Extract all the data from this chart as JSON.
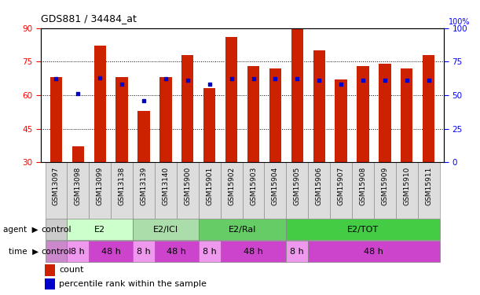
{
  "title": "GDS881 / 34484_at",
  "samples": [
    "GSM13097",
    "GSM13098",
    "GSM13099",
    "GSM13138",
    "GSM13139",
    "GSM13140",
    "GSM15900",
    "GSM15901",
    "GSM15902",
    "GSM15903",
    "GSM15904",
    "GSM15905",
    "GSM15906",
    "GSM15907",
    "GSM15908",
    "GSM15909",
    "GSM15910",
    "GSM15911"
  ],
  "counts": [
    68,
    37,
    82,
    68,
    53,
    68,
    78,
    63,
    86,
    73,
    72,
    91,
    80,
    67,
    73,
    74,
    72,
    78
  ],
  "percentile_values": [
    62,
    51,
    63,
    58,
    46,
    62,
    61,
    58,
    62,
    62,
    62,
    62,
    61,
    58,
    61,
    61,
    61,
    61
  ],
  "ymin": 30,
  "ymax": 90,
  "yticks_left": [
    30,
    45,
    60,
    75,
    90
  ],
  "yticks_right": [
    0,
    25,
    50,
    75,
    100
  ],
  "bar_color": "#cc2200",
  "dot_color": "#0000cc",
  "grid_color": "#000000",
  "agent_groups": [
    {
      "label": "control",
      "start": 0,
      "end": 1,
      "color": "#cccccc"
    },
    {
      "label": "E2",
      "start": 1,
      "end": 4,
      "color": "#ccffcc"
    },
    {
      "label": "E2/ICI",
      "start": 4,
      "end": 7,
      "color": "#aaddaa"
    },
    {
      "label": "E2/Ral",
      "start": 7,
      "end": 11,
      "color": "#66cc66"
    },
    {
      "label": "E2/TOT",
      "start": 11,
      "end": 18,
      "color": "#44cc44"
    }
  ],
  "time_groups": [
    {
      "label": "control",
      "start": 0,
      "end": 1,
      "color": "#cc88cc"
    },
    {
      "label": "8 h",
      "start": 1,
      "end": 2,
      "color": "#ee99ee"
    },
    {
      "label": "48 h",
      "start": 2,
      "end": 4,
      "color": "#cc44cc"
    },
    {
      "label": "8 h",
      "start": 4,
      "end": 5,
      "color": "#ee99ee"
    },
    {
      "label": "48 h",
      "start": 5,
      "end": 7,
      "color": "#cc44cc"
    },
    {
      "label": "8 h",
      "start": 7,
      "end": 8,
      "color": "#ee99ee"
    },
    {
      "label": "48 h",
      "start": 8,
      "end": 11,
      "color": "#cc44cc"
    },
    {
      "label": "8 h",
      "start": 11,
      "end": 12,
      "color": "#ee99ee"
    },
    {
      "label": "48 h",
      "start": 12,
      "end": 18,
      "color": "#cc44cc"
    }
  ]
}
